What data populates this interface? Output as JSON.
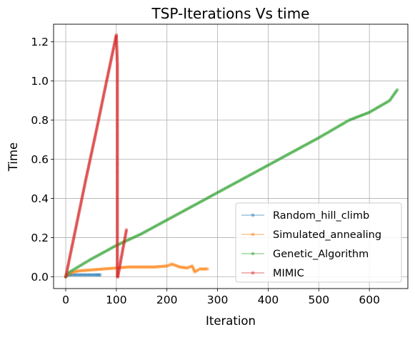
{
  "chart_data": {
    "type": "line",
    "title": "TSP-Iterations Vs time",
    "xlabel": "Iteration",
    "ylabel": "Time",
    "xlim": [
      -24,
      676
    ],
    "ylim": [
      -0.06,
      1.29
    ],
    "xticks": [
      0,
      100,
      200,
      300,
      400,
      500,
      600
    ],
    "yticks": [
      0.0,
      0.2,
      0.4,
      0.6,
      0.8,
      1.0,
      1.2
    ],
    "xtick_labels": [
      "0",
      "100",
      "200",
      "300",
      "400",
      "500",
      "600"
    ],
    "ytick_labels": [
      "0.0",
      "0.2",
      "0.4",
      "0.6",
      "0.8",
      "1.0",
      "1.2"
    ],
    "grid": true,
    "legend_position": "lower-right",
    "series": [
      {
        "name": "Random_hill_climb",
        "color": "#1f77b4",
        "x": [
          0,
          5,
          10,
          20,
          30,
          40,
          50,
          60,
          68
        ],
        "y": [
          0.0,
          0.01,
          0.01,
          0.01,
          0.01,
          0.01,
          0.01,
          0.01,
          0.01
        ]
      },
      {
        "name": "Simulated_annealing",
        "color": "#ff7f0e",
        "x": [
          0,
          10,
          25,
          50,
          75,
          100,
          125,
          150,
          175,
          200,
          210,
          225,
          240,
          250,
          255,
          265,
          280
        ],
        "y": [
          0.0,
          0.02,
          0.03,
          0.035,
          0.04,
          0.045,
          0.05,
          0.05,
          0.05,
          0.055,
          0.065,
          0.05,
          0.045,
          0.055,
          0.025,
          0.04,
          0.04
        ]
      },
      {
        "name": "Genetic_Algorithm",
        "color": "#2ca02c",
        "x": [
          0,
          5,
          50,
          100,
          150,
          200,
          250,
          300,
          350,
          400,
          450,
          500,
          550,
          560,
          600,
          640,
          655
        ],
        "y": [
          0.0,
          0.02,
          0.09,
          0.16,
          0.22,
          0.29,
          0.36,
          0.43,
          0.5,
          0.57,
          0.64,
          0.71,
          0.785,
          0.8,
          0.84,
          0.9,
          0.955
        ]
      },
      {
        "name": "MIMIC",
        "color": "#d62728",
        "x": [
          0,
          20,
          40,
          60,
          80,
          100,
          102,
          102,
          103,
          110,
          120
        ],
        "y": [
          0.0,
          0.25,
          0.5,
          0.74,
          0.99,
          1.235,
          1.09,
          0.0,
          0.0,
          0.1,
          0.24
        ]
      }
    ]
  }
}
